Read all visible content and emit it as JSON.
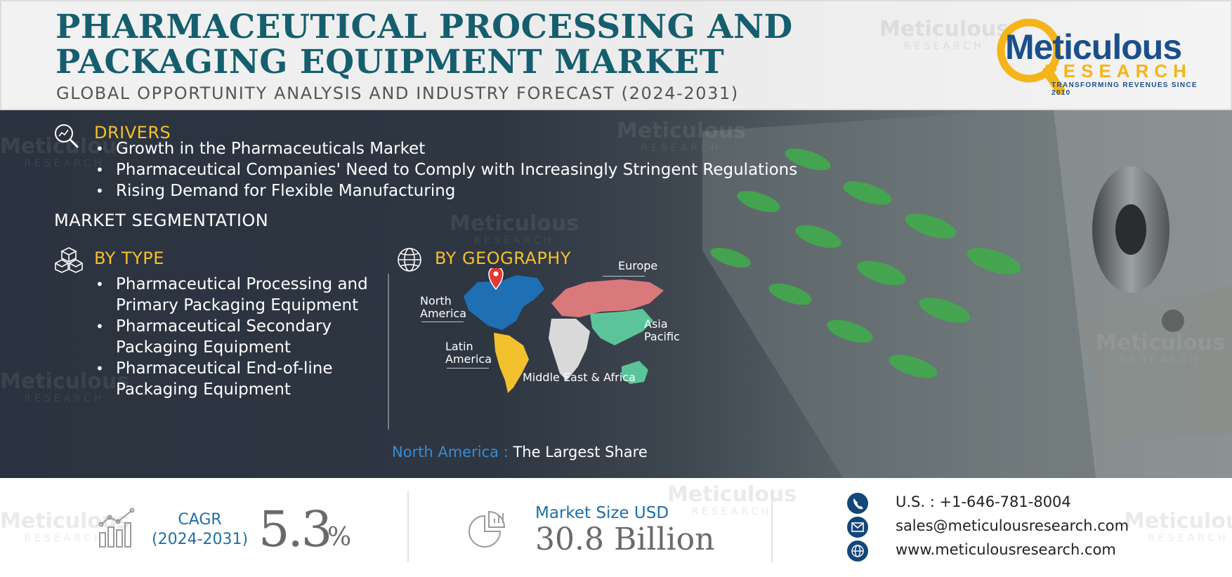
{
  "header": {
    "title_line1": "PHARMACEUTICAL PROCESSING AND",
    "title_line2": "PACKAGING EQUIPMENT MARKET",
    "subtitle": "GLOBAL OPPORTUNITY ANALYSIS AND INDUSTRY FORECAST (2024-2031)"
  },
  "logo": {
    "word1": "Meticulous",
    "word2": "RESEARCH",
    "tagline": "TRANSFORMING REVENUES SINCE 2010",
    "colors": {
      "blue": "#1b4f8c",
      "gold": "#f4b41a"
    }
  },
  "watermark": {
    "word1": "Meticulous",
    "word2": "RESEARCH"
  },
  "drivers": {
    "heading": "DRIVERS",
    "items": [
      "Growth in the Pharmaceuticals Market",
      "Pharmaceutical Companies' Need to Comply with Increasingly Stringent Regulations",
      "Rising Demand for Flexible Manufacturing"
    ]
  },
  "segmentation": {
    "heading": "MARKET SEGMENTATION",
    "by_type": {
      "heading": "BY TYPE",
      "items": [
        [
          "Pharmaceutical Processing and",
          "Primary Packaging Equipment"
        ],
        [
          "Pharmaceutical Secondary",
          "Packaging Equipment"
        ],
        [
          "Pharmaceutical End-of-line",
          "Packaging Equipment"
        ]
      ]
    },
    "by_geography": {
      "heading": "BY GEOGRAPHY",
      "regions": {
        "europe": "Europe",
        "north_america_1": "North",
        "north_america_2": "America",
        "asia_pacific_1": "Asia",
        "asia_pacific_2": "Pacific",
        "latin_america_1": "Latin",
        "latin_america_2": "America",
        "mea": "Middle East & Africa"
      },
      "region_colors": {
        "north_america": "#1f6fb5",
        "europe": "#d9797b",
        "asia_pacific": "#5cc49a",
        "latin_america": "#f2c12e",
        "mea": "#d9d9d9"
      },
      "largest_share_region": "North America :",
      "largest_share_text": " The Largest Share"
    }
  },
  "footer": {
    "cagr_label_1": "CAGR",
    "cagr_label_2": "(2024-2031)",
    "cagr_value": "5.3",
    "cagr_unit": "%",
    "market_size_label": "Market Size USD",
    "market_size_value": "30.8 Billion",
    "phone": "U.S. : +1-646-781-8004",
    "email": "sales@meticulousresearch.com",
    "website": "www.meticulousresearch.com"
  }
}
